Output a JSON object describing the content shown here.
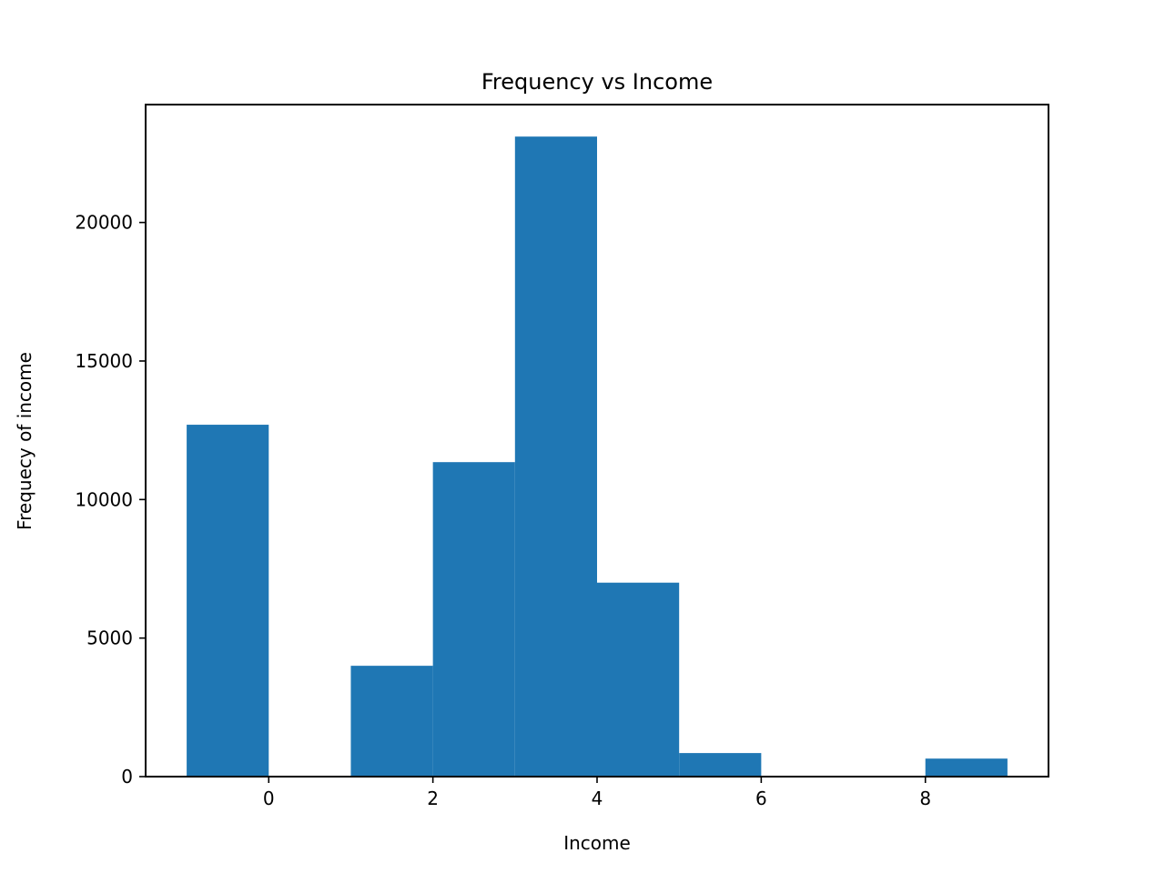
{
  "chart_data": {
    "type": "bar",
    "subtype": "histogram",
    "title": "Frequency vs Income",
    "xlabel": "Income",
    "ylabel": "Frequecy of income",
    "bar_color": "#1f77b4",
    "bins": [
      {
        "x0": -1,
        "x1": 0,
        "count": 12700
      },
      {
        "x0": 0,
        "x1": 1,
        "count": 0
      },
      {
        "x0": 1,
        "x1": 2,
        "count": 4000
      },
      {
        "x0": 2,
        "x1": 3,
        "count": 11350
      },
      {
        "x0": 3,
        "x1": 4,
        "count": 23100
      },
      {
        "x0": 4,
        "x1": 5,
        "count": 7000
      },
      {
        "x0": 5,
        "x1": 6,
        "count": 850
      },
      {
        "x0": 6,
        "x1": 7,
        "count": 0
      },
      {
        "x0": 7,
        "x1": 8,
        "count": 0
      },
      {
        "x0": 8,
        "x1": 9,
        "count": 650
      }
    ],
    "xlim": [
      -1.5,
      9.5
    ],
    "ylim": [
      0,
      24255
    ],
    "xticks": [
      0,
      2,
      4,
      6,
      8
    ],
    "yticks": [
      0,
      5000,
      10000,
      15000,
      20000
    ],
    "grid": false,
    "legend": "none"
  }
}
